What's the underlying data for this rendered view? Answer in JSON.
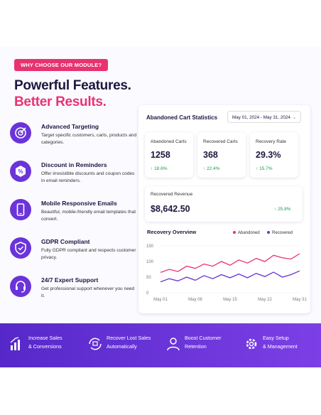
{
  "badge": "WHY CHOOSE OUR MODULE?",
  "headline": {
    "line1": "Powerful Features.",
    "line2": "Better Results."
  },
  "features": [
    {
      "title": "Advanced Targeting",
      "text": "Target specific customers, carts, products and categories."
    },
    {
      "title": "Discount in Reminders",
      "text": "Offer irresistible discounts and coupon codes in email reminders."
    },
    {
      "title": "Mobile Responsive Emails",
      "text": "Beautiful, mobile-friendly email templates that convert."
    },
    {
      "title": "GDPR Compliant",
      "text": "Fully GDPR compliant and respects customer privacy."
    },
    {
      "title": "24/7 Expert Support",
      "text": "Get professional support whenever you need it."
    }
  ],
  "dashboard": {
    "title": "Abandoned Cart Statistics",
    "date_range": "May 01, 2024 - May 31, 2024",
    "stats": [
      {
        "label": "Abandoned Carts",
        "value": "1258",
        "change": "18.6%"
      },
      {
        "label": "Recovered Carts",
        "value": "368",
        "change": "22.4%"
      },
      {
        "label": "Recovery Rate",
        "value": "29.3%",
        "change": "15.7%"
      }
    ],
    "revenue": {
      "label": "Recovered Revenue",
      "value": "$8,642.50",
      "change": "25.8%"
    }
  },
  "chart_data": {
    "type": "line",
    "title": "Recovery Overview",
    "categories": [
      "May 01",
      null,
      null,
      null,
      "May 08",
      null,
      null,
      null,
      "May 15",
      null,
      null,
      null,
      "May 22",
      null,
      null,
      null,
      "May 31"
    ],
    "series": [
      {
        "name": "Abandoned",
        "color": "#e8336f",
        "values": [
          65,
          75,
          68,
          85,
          78,
          92,
          85,
          100,
          88,
          105,
          95,
          110,
          100,
          120,
          112,
          108,
          125
        ]
      },
      {
        "name": "Recovered",
        "color": "#6a34d9",
        "values": [
          35,
          45,
          38,
          50,
          40,
          55,
          45,
          58,
          48,
          60,
          48,
          62,
          52,
          66,
          50,
          58,
          70
        ]
      }
    ],
    "ylim": [
      0,
      150
    ],
    "yticks": [
      0,
      50,
      100,
      150
    ]
  },
  "benefits": [
    {
      "line1": "Increase Sales",
      "line2": "& Conversions"
    },
    {
      "line1": "Recover Lost Sales",
      "line2": "Automatically"
    },
    {
      "line1": "Boost Customer",
      "line2": "Retention"
    },
    {
      "line1": "Easy Setup",
      "line2": "& Management"
    }
  ]
}
